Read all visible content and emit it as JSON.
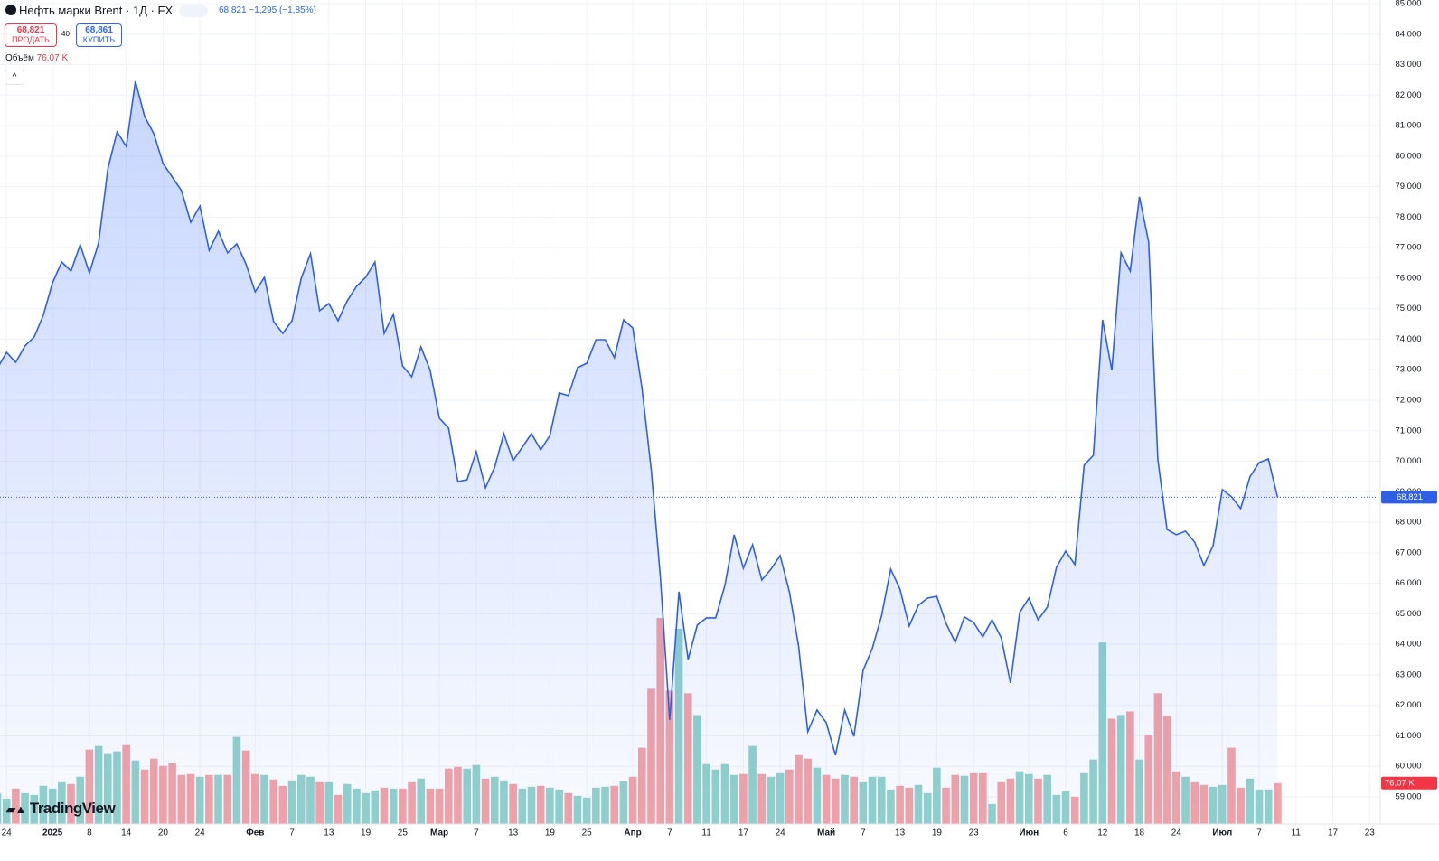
{
  "header": {
    "title": "Нефть марки Brent · 1Д · FX",
    "quote": "68,821 −1,295 (−1,85%)",
    "sell_price": "68,821",
    "sell_label": "ПРОДАТЬ",
    "spread": "40",
    "buy_price": "68,861",
    "buy_label": "КУПИТЬ",
    "volume_title": "Объём",
    "volume_value": "76,07 K",
    "logo": "TradingView"
  },
  "chart_data": {
    "type": "line",
    "area": true,
    "color": "#2f5fe6",
    "volume_up_color": "#92d2ca",
    "volume_down_color": "#f4a3a6",
    "values": [
      73040,
      73570,
      73245,
      73780,
      74070,
      74785,
      75850,
      76530,
      76235,
      77095,
      76175,
      77155,
      79580,
      80795,
      80320,
      82455,
      81300,
      80735,
      79760,
      79315,
      78870,
      77835,
      78365,
      76915,
      77540,
      76830,
      77125,
      76470,
      75555,
      76030,
      74575,
      74190,
      74605,
      76000,
      76800,
      74935,
      75170,
      74605,
      75260,
      75730,
      76030,
      76530,
      74190,
      74815,
      73125,
      72770,
      73750,
      72980,
      71410,
      71085,
      69335,
      69395,
      70315,
      69130,
      69810,
      70905,
      70015,
      70460,
      70905,
      70375,
      70845,
      72240,
      72150,
      73065,
      73215,
      73985,
      73985,
      73395,
      74635,
      74370,
      72385,
      69720,
      66170,
      61520,
      65725,
      63505,
      64630,
      64865,
      64865,
      65930,
      67590,
      66495,
      67265,
      66110,
      66465,
      66910,
      65725,
      63945,
      61135,
      61845,
      61430,
      60365,
      61845,
      60985,
      63150,
      63860,
      64925,
      66465,
      65815,
      64600,
      65280,
      65515,
      65575,
      64690,
      64065,
      64895,
      64715,
      64245,
      64805,
      64215,
      62735,
      65045,
      65515,
      64805,
      65220,
      66525,
      67055,
      66610,
      69870,
      70195,
      74635,
      72980,
      76830,
      76235,
      78665,
      77185,
      70075,
      67765,
      67590,
      67710,
      67350,
      66585,
      67235,
      69070,
      68835,
      68450,
      69485,
      69960,
      70075,
      68821
    ],
    "last_label": "68,821",
    "volume": [
      57500,
      47300,
      65900,
      57500,
      54100,
      71000,
      65900,
      77700,
      74400,
      87900,
      138600,
      145300,
      130100,
      135200,
      147000,
      118300,
      101400,
      121700,
      108200,
      113200,
      91300,
      93000,
      87900,
      91300,
      91300,
      91300,
      162200,
      136900,
      93000,
      91300,
      82800,
      71000,
      81100,
      91300,
      87900,
      77700,
      77700,
      54100,
      74400,
      65900,
      57500,
      62500,
      67600,
      65900,
      65900,
      77700,
      84500,
      65900,
      65900,
      103100,
      106500,
      103100,
      109900,
      84500,
      87900,
      81100,
      74400,
      65900,
      69300,
      71000,
      67600,
      64200,
      57500,
      52400,
      49000,
      67600,
      69300,
      71000,
      79400,
      87900,
      142000,
      251800,
      383600,
      248400,
      363400,
      243400,
      202800,
      111500,
      101400,
      111500,
      91300,
      93000,
      145300,
      93000,
      87900,
      94600,
      101400,
      128400,
      121700,
      104800,
      91300,
      84500,
      91300,
      87900,
      77700,
      87900,
      87900,
      64200,
      71000,
      67600,
      72700,
      57500,
      104800,
      67600,
      91300,
      89600,
      94600,
      94600,
      37200,
      77700,
      84500,
      98000,
      93000,
      84500,
      91300,
      54100,
      60800,
      50700,
      94600,
      120000,
      338000,
      196000,
      202800,
      209600,
      120000,
      165600,
      243400,
      201100,
      98000,
      87900,
      77700,
      72700,
      69300,
      72700,
      142000,
      67600,
      84500,
      64200,
      64200,
      76070
    ],
    "volume_last_label": "76,07 K",
    "ylim": [
      59000,
      85000
    ],
    "yticks": [
      {
        "value": 59000,
        "label": "59,000"
      },
      {
        "value": 60000,
        "label": "60,000"
      },
      {
        "value": 61000,
        "label": "61,000"
      },
      {
        "value": 62000,
        "label": "62,000"
      },
      {
        "value": 63000,
        "label": "63,000"
      },
      {
        "value": 64000,
        "label": "64,000"
      },
      {
        "value": 65000,
        "label": "65,000"
      },
      {
        "value": 66000,
        "label": "66,000"
      },
      {
        "value": 67000,
        "label": "67,000"
      },
      {
        "value": 68000,
        "label": "68,000"
      },
      {
        "value": 69000,
        "label": "69,000"
      },
      {
        "value": 70000,
        "label": "70,000"
      },
      {
        "value": 71000,
        "label": "71,000"
      },
      {
        "value": 72000,
        "label": "72,000"
      },
      {
        "value": 73000,
        "label": "73,000"
      },
      {
        "value": 74000,
        "label": "74,000"
      },
      {
        "value": 75000,
        "label": "75,000"
      },
      {
        "value": 76000,
        "label": "76,000"
      },
      {
        "value": 77000,
        "label": "77,000"
      },
      {
        "value": 78000,
        "label": "78,000"
      },
      {
        "value": 79000,
        "label": "79,000"
      },
      {
        "value": 80000,
        "label": "80,000"
      },
      {
        "value": 81000,
        "label": "81,000"
      },
      {
        "value": 82000,
        "label": "82,000"
      },
      {
        "value": 83000,
        "label": "83,000"
      },
      {
        "value": 84000,
        "label": "84,000"
      },
      {
        "value": 85000,
        "label": "85,000"
      }
    ],
    "xticks": [
      {
        "value": 1,
        "label": "24"
      },
      {
        "value": 6,
        "label": "2025"
      },
      {
        "value": 10,
        "label": "8"
      },
      {
        "value": 14,
        "label": "14"
      },
      {
        "value": 18,
        "label": "20"
      },
      {
        "value": 22,
        "label": "24"
      },
      {
        "value": 28,
        "label": "Фев"
      },
      {
        "value": 32,
        "label": "7"
      },
      {
        "value": 36,
        "label": "13"
      },
      {
        "value": 40,
        "label": "19"
      },
      {
        "value": 44,
        "label": "25"
      },
      {
        "value": 48,
        "label": "Мар"
      },
      {
        "value": 52,
        "label": "7"
      },
      {
        "value": 56,
        "label": "13"
      },
      {
        "value": 60,
        "label": "19"
      },
      {
        "value": 64,
        "label": "25"
      },
      {
        "value": 69,
        "label": "Апр"
      },
      {
        "value": 73,
        "label": "7"
      },
      {
        "value": 77,
        "label": "11"
      },
      {
        "value": 81,
        "label": "17"
      },
      {
        "value": 85,
        "label": "24"
      },
      {
        "value": 90,
        "label": "Май"
      },
      {
        "value": 94,
        "label": "7"
      },
      {
        "value": 98,
        "label": "13"
      },
      {
        "value": 102,
        "label": "19"
      },
      {
        "value": 106,
        "label": "23"
      },
      {
        "value": 112,
        "label": "Июн"
      },
      {
        "value": 116,
        "label": "6"
      },
      {
        "value": 120,
        "label": "12"
      },
      {
        "value": 124,
        "label": "18"
      },
      {
        "value": 128,
        "label": "24"
      },
      {
        "value": 133,
        "label": "Июл"
      },
      {
        "value": 137,
        "label": "7"
      },
      {
        "value": 141,
        "label": "11"
      },
      {
        "value": 145,
        "label": "17"
      },
      {
        "value": 149,
        "label": "23"
      }
    ],
    "grid": true
  }
}
